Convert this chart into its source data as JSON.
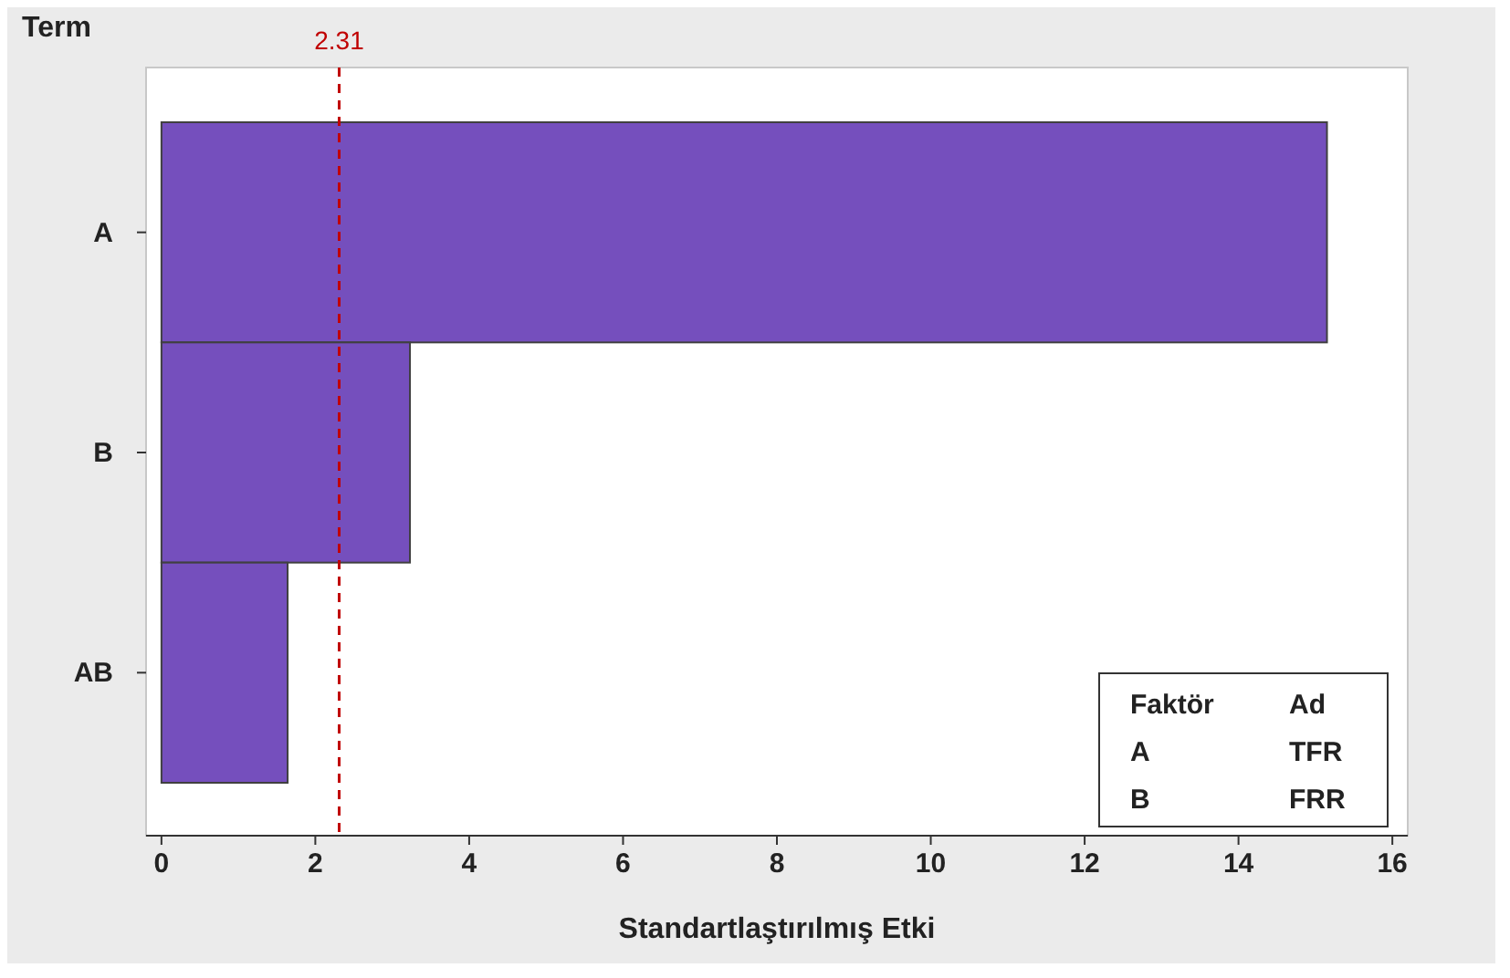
{
  "chart_data": {
    "type": "bar",
    "orientation": "horizontal",
    "ylabel": "Term",
    "xlabel": "Standartlaştırılmış Etki",
    "categories": [
      "A",
      "B",
      "AB"
    ],
    "values": [
      15.15,
      3.23,
      1.64
    ],
    "color": "#754fbd",
    "xlim": [
      -0.2,
      16.2
    ],
    "xticks": [
      0,
      2,
      4,
      6,
      8,
      10,
      12,
      14,
      16
    ],
    "grid": false,
    "ref_lines": [
      {
        "axis": "x",
        "value": 2.31,
        "label": "2.31",
        "color": "#c00000",
        "line_style": "dashed"
      }
    ],
    "annotations": [
      "Faktör",
      "Ad",
      "A",
      "TFR",
      "B",
      "FRR"
    ]
  }
}
